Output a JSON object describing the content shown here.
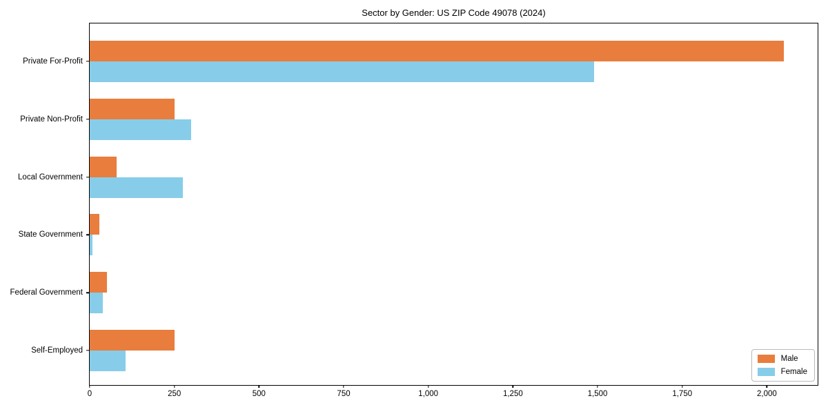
{
  "chart_data": {
    "type": "bar",
    "orientation": "horizontal",
    "title": "Sector by Gender: US ZIP Code 49078 (2024)",
    "categories": [
      "Private For-Profit",
      "Private Non-Profit",
      "Local Government",
      "State Government",
      "Federal Government",
      "Self-Employed"
    ],
    "series": [
      {
        "name": "Male",
        "color": "#e87d3d",
        "values": [
          2050,
          250,
          80,
          28,
          50,
          250
        ]
      },
      {
        "name": "Female",
        "color": "#87cde9",
        "values": [
          1490,
          300,
          275,
          9,
          38,
          105
        ]
      }
    ],
    "xlabel": "",
    "ylabel": "",
    "xlim": [
      0,
      2150
    ],
    "xticks": [
      0,
      250,
      500,
      750,
      1000,
      1250,
      1500,
      1750,
      2000
    ],
    "xtick_labels": [
      "0",
      "250",
      "500",
      "750",
      "1,000",
      "1,250",
      "1,500",
      "1,750",
      "2,000"
    ],
    "grid": false,
    "background": "#ffffff",
    "spine_color": "#000000",
    "legend": {
      "position": "lower-right",
      "items": [
        {
          "label": "Male",
          "color": "#e87d3d"
        },
        {
          "label": "Female",
          "color": "#87cde9"
        }
      ]
    }
  }
}
